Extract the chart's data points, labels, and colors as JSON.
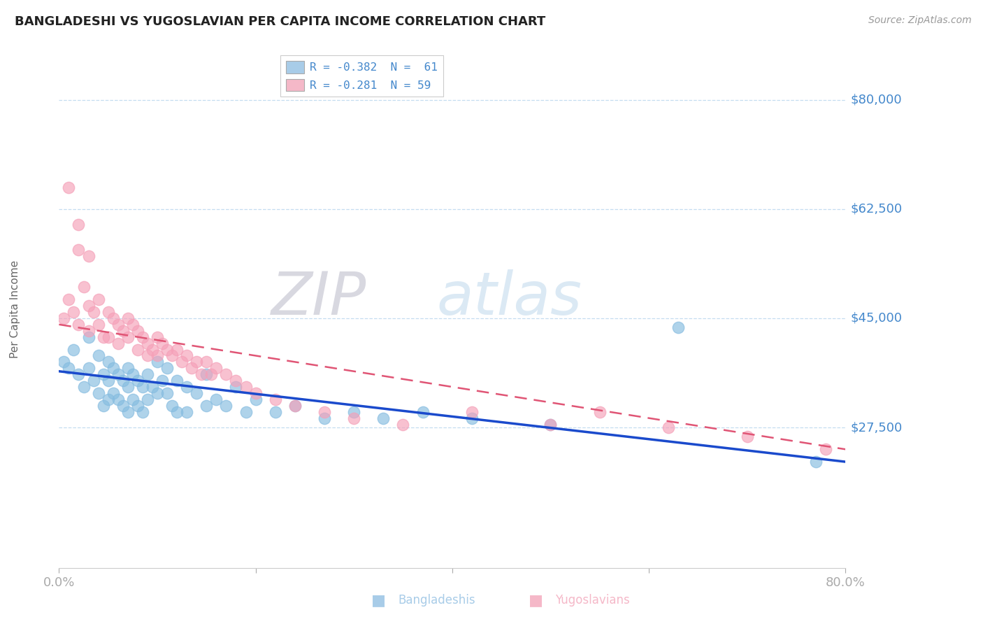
{
  "title": "BANGLADESHI VS YUGOSLAVIAN PER CAPITA INCOME CORRELATION CHART",
  "source": "Source: ZipAtlas.com",
  "ylabel": "Per Capita Income",
  "ylim": [
    5000,
    88000
  ],
  "xlim": [
    0.0,
    0.8
  ],
  "ytick_positions": [
    27500,
    45000,
    62500,
    80000
  ],
  "ytick_labels": [
    "$27,500",
    "$45,000",
    "$62,500",
    "$80,000"
  ],
  "xtick_positions": [
    0.0,
    0.8
  ],
  "xtick_labels": [
    "0.0%",
    "80.0%"
  ],
  "xtick_minor": [
    0.2,
    0.4,
    0.6
  ],
  "legend_entry1": "R = -0.382  N =  61",
  "legend_entry2": "R = -0.281  N = 59",
  "legend_label1": "Bangladeshis",
  "legend_label2": "Yugoslavians",
  "blue_scatter_color": "#85bce0",
  "pink_scatter_color": "#f5a0b8",
  "blue_line_color": "#1a4acc",
  "pink_line_color": "#e05575",
  "blue_legend_color": "#a8cce8",
  "pink_legend_color": "#f5b8c8",
  "axis_color": "#4488cc",
  "grid_color": "#c5ddf0",
  "title_color": "#222222",
  "source_color": "#999999",
  "watermark_color": "#cce0f0",
  "watermark_text": "ZIPatlas",
  "bangladeshi_x": [
    0.005,
    0.01,
    0.015,
    0.02,
    0.025,
    0.03,
    0.03,
    0.035,
    0.04,
    0.04,
    0.045,
    0.045,
    0.05,
    0.05,
    0.05,
    0.055,
    0.055,
    0.06,
    0.06,
    0.065,
    0.065,
    0.07,
    0.07,
    0.07,
    0.075,
    0.075,
    0.08,
    0.08,
    0.085,
    0.085,
    0.09,
    0.09,
    0.095,
    0.1,
    0.1,
    0.105,
    0.11,
    0.11,
    0.115,
    0.12,
    0.12,
    0.13,
    0.13,
    0.14,
    0.15,
    0.15,
    0.16,
    0.17,
    0.18,
    0.19,
    0.2,
    0.22,
    0.24,
    0.27,
    0.3,
    0.33,
    0.37,
    0.42,
    0.5,
    0.63,
    0.77
  ],
  "bangladeshi_y": [
    38000,
    37000,
    40000,
    36000,
    34000,
    42000,
    37000,
    35000,
    39000,
    33000,
    36000,
    31000,
    38000,
    35000,
    32000,
    37000,
    33000,
    36000,
    32000,
    35000,
    31000,
    37000,
    34000,
    30000,
    36000,
    32000,
    35000,
    31000,
    34000,
    30000,
    36000,
    32000,
    34000,
    38000,
    33000,
    35000,
    37000,
    33000,
    31000,
    35000,
    30000,
    34000,
    30000,
    33000,
    36000,
    31000,
    32000,
    31000,
    34000,
    30000,
    32000,
    30000,
    31000,
    29000,
    30000,
    29000,
    30000,
    29000,
    28000,
    43500,
    22000
  ],
  "yugoslavian_x": [
    0.005,
    0.01,
    0.015,
    0.02,
    0.025,
    0.03,
    0.03,
    0.035,
    0.04,
    0.04,
    0.045,
    0.05,
    0.05,
    0.055,
    0.06,
    0.06,
    0.065,
    0.07,
    0.07,
    0.075,
    0.08,
    0.08,
    0.085,
    0.09,
    0.09,
    0.095,
    0.1,
    0.1,
    0.105,
    0.11,
    0.115,
    0.12,
    0.125,
    0.13,
    0.135,
    0.14,
    0.145,
    0.15,
    0.155,
    0.16,
    0.17,
    0.18,
    0.19,
    0.2,
    0.22,
    0.24,
    0.27,
    0.3,
    0.35,
    0.42,
    0.5,
    0.55,
    0.62,
    0.7,
    0.78,
    0.01,
    0.02,
    0.02,
    0.03
  ],
  "yugoslavian_y": [
    45000,
    48000,
    46000,
    44000,
    50000,
    47000,
    43000,
    46000,
    48000,
    44000,
    42000,
    46000,
    42000,
    45000,
    44000,
    41000,
    43000,
    45000,
    42000,
    44000,
    43000,
    40000,
    42000,
    41000,
    39000,
    40000,
    42000,
    39000,
    41000,
    40000,
    39000,
    40000,
    38000,
    39000,
    37000,
    38000,
    36000,
    38000,
    36000,
    37000,
    36000,
    35000,
    34000,
    33000,
    32000,
    31000,
    30000,
    29000,
    28000,
    30000,
    28000,
    30000,
    27500,
    26000,
    24000,
    66000,
    60000,
    56000,
    55000
  ]
}
